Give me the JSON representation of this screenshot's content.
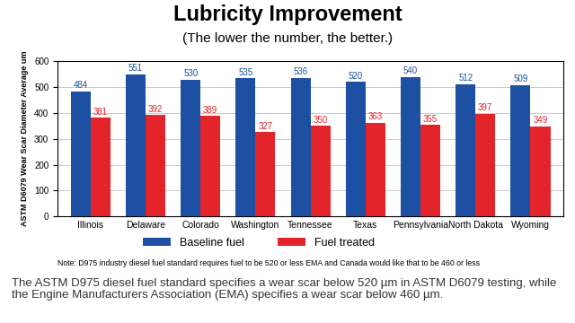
{
  "chart_data": {
    "type": "bar",
    "title": "Lubricity Improvement",
    "subtitle": "(The lower the number, the better.)",
    "y_label": "ASTM D6079 Wear Scar Diameter Average um",
    "categories": [
      "Illinois",
      "Delaware",
      "Colorado",
      "Washington",
      "Tennessee",
      "Texas",
      "Pennsylvania",
      "North Dakota",
      "Wyoming"
    ],
    "series": [
      {
        "name": "Baseline fuel",
        "color": "#1d4fa3",
        "values": [
          484,
          551,
          530,
          535,
          536,
          520,
          540,
          512,
          509
        ]
      },
      {
        "name": "Fuel treated",
        "color": "#e3242b",
        "values": [
          381,
          392,
          389,
          327,
          350,
          363,
          355,
          397,
          349
        ]
      }
    ],
    "ylim": [
      0,
      600
    ],
    "yticks": [
      0,
      100,
      200,
      300,
      400,
      500,
      600
    ],
    "grid": true,
    "legend": "lower center",
    "data_labels": true,
    "annotations": [
      "Note: D975 industry diesel fuel standard requires fuel to be 520 or less EMA and Canada would like that to be 460 or less",
      "The ASTM D975 diesel fuel standard specifies a wear scar below 520 µm in ASTM D6079 testing, while the Engine Manufacturers Association (EMA) specifies a wear scar below 460 µm."
    ]
  }
}
